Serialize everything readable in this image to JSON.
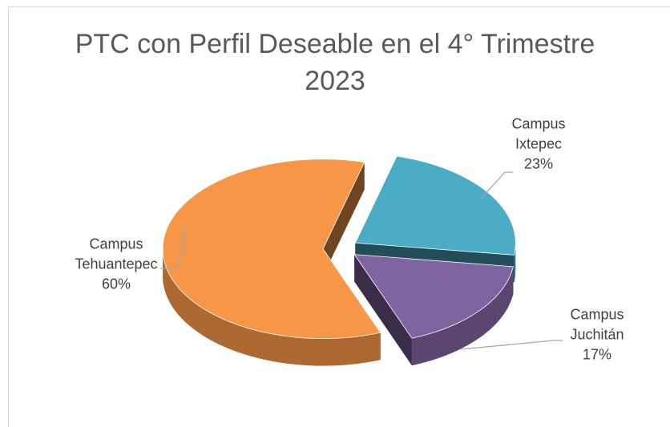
{
  "chart_data": {
    "type": "pie",
    "title": "PTC con Perfil Deseable en el 4° Trimestre 2023",
    "categories": [
      "Campus Tehuantepec",
      "Campus Ixtepec",
      "Campus Juchitán"
    ],
    "values": [
      60,
      23,
      17
    ],
    "value_labels": [
      "60%",
      "23%",
      "17%"
    ],
    "colors": [
      "#f79646",
      "#4bacc6",
      "#8064a2"
    ]
  }
}
